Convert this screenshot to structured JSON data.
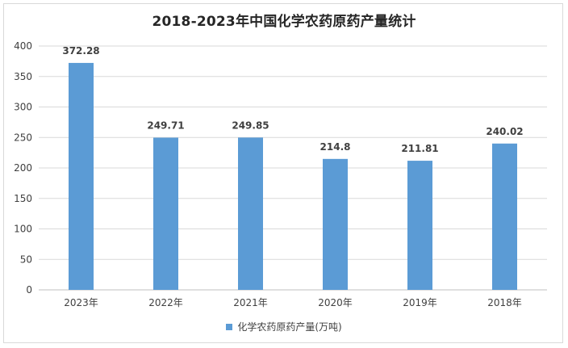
{
  "colors": {
    "bar": "#5B9BD5",
    "grid": "#d9d9d9",
    "axis": "#bfbfbf",
    "text": "#404040"
  },
  "chart_data": {
    "type": "bar",
    "title": "2018-2023年中国化学农药原药产量统计",
    "categories": [
      "2023年",
      "2022年",
      "2021年",
      "2020年",
      "2019年",
      "2018年"
    ],
    "series": [
      {
        "name": "化学农药原药产量(万吨)",
        "values": [
          372.28,
          249.71,
          249.85,
          214.8,
          211.81,
          240.02
        ]
      }
    ],
    "data_labels": [
      "372.28",
      "249.71",
      "249.85",
      "214.8",
      "211.81",
      "240.02"
    ],
    "ylim": [
      0,
      400
    ],
    "yticks": [
      0,
      50,
      100,
      150,
      200,
      250,
      300,
      350,
      400
    ],
    "grid": true,
    "legend_position": "bottom"
  }
}
